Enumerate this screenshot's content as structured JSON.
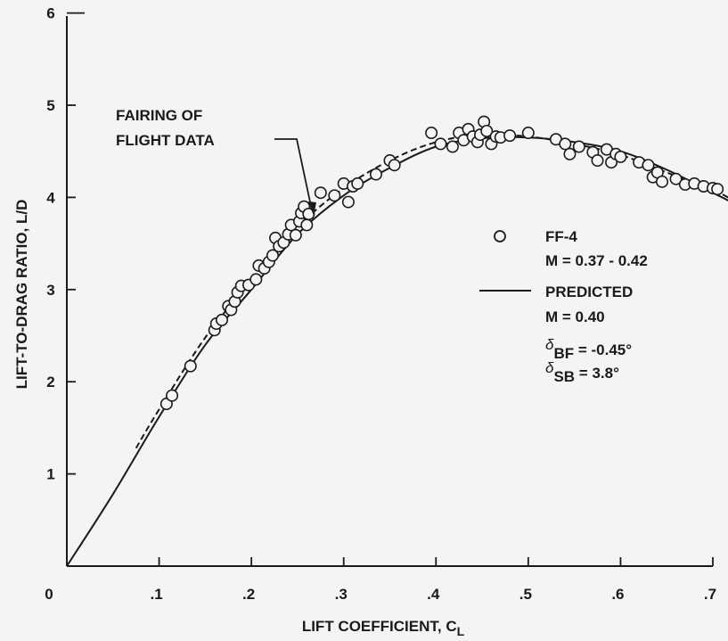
{
  "chart_data": {
    "type": "scatter",
    "xlabel": "LIFT COEFFICIENT, C",
    "xlabel_sub": "L",
    "ylabel": "LIFT-TO-DRAG RATIO, L/D",
    "xlim": [
      0,
      0.7
    ],
    "ylim": [
      0,
      6
    ],
    "xticks": [
      0,
      0.1,
      0.2,
      0.3,
      0.4,
      0.5,
      0.6,
      0.7
    ],
    "xtick_labels": [
      "0",
      ".1",
      ".2",
      ".3",
      ".4",
      ".5",
      ".6",
      ".7"
    ],
    "yticks": [
      1,
      2,
      3,
      4,
      5,
      6
    ],
    "ytick_labels": [
      "1",
      "2",
      "3",
      "4",
      "5",
      "6"
    ],
    "grid": false,
    "legend_position": "center-right",
    "annotation": {
      "line1": "FAIRING OF",
      "line2": "FLIGHT DATA",
      "points_to": [
        0.265,
        3.85
      ]
    },
    "legend": {
      "flight_label": "FF-4",
      "flight_mach": "M = 0.37 - 0.42",
      "predicted_label": "PREDICTED",
      "predicted_mach": "M = 0.40",
      "delta_bf": {
        "symbol": "δ",
        "sub": "BF",
        "value": " = -0.45°"
      },
      "delta_sb": {
        "symbol": "δ",
        "sub": "SB",
        "value": " = 3.8°"
      }
    },
    "series": [
      {
        "name": "FF-4",
        "style": "open-circle",
        "points": [
          [
            0.108,
            1.76
          ],
          [
            0.114,
            1.85
          ],
          [
            0.134,
            2.17
          ],
          [
            0.16,
            2.56
          ],
          [
            0.162,
            2.63
          ],
          [
            0.168,
            2.67
          ],
          [
            0.175,
            2.82
          ],
          [
            0.178,
            2.78
          ],
          [
            0.182,
            2.87
          ],
          [
            0.185,
            2.97
          ],
          [
            0.189,
            3.04
          ],
          [
            0.197,
            3.05
          ],
          [
            0.205,
            3.11
          ],
          [
            0.208,
            3.26
          ],
          [
            0.214,
            3.23
          ],
          [
            0.219,
            3.3
          ],
          [
            0.223,
            3.37
          ],
          [
            0.226,
            3.56
          ],
          [
            0.23,
            3.47
          ],
          [
            0.235,
            3.51
          ],
          [
            0.24,
            3.6
          ],
          [
            0.243,
            3.7
          ],
          [
            0.248,
            3.59
          ],
          [
            0.252,
            3.74
          ],
          [
            0.254,
            3.83
          ],
          [
            0.257,
            3.9
          ],
          [
            0.26,
            3.7
          ],
          [
            0.262,
            3.82
          ],
          [
            0.275,
            4.05
          ],
          [
            0.29,
            4.02
          ],
          [
            0.3,
            4.15
          ],
          [
            0.305,
            3.95
          ],
          [
            0.31,
            4.12
          ],
          [
            0.315,
            4.15
          ],
          [
            0.335,
            4.25
          ],
          [
            0.35,
            4.4
          ],
          [
            0.355,
            4.35
          ],
          [
            0.395,
            4.7
          ],
          [
            0.405,
            4.58
          ],
          [
            0.418,
            4.55
          ],
          [
            0.425,
            4.7
          ],
          [
            0.43,
            4.62
          ],
          [
            0.435,
            4.74
          ],
          [
            0.44,
            4.66
          ],
          [
            0.445,
            4.6
          ],
          [
            0.448,
            4.68
          ],
          [
            0.452,
            4.82
          ],
          [
            0.455,
            4.72
          ],
          [
            0.46,
            4.58
          ],
          [
            0.465,
            4.66
          ],
          [
            0.47,
            4.65
          ],
          [
            0.48,
            4.67
          ],
          [
            0.5,
            4.7
          ],
          [
            0.53,
            4.63
          ],
          [
            0.54,
            4.58
          ],
          [
            0.545,
            4.47
          ],
          [
            0.555,
            4.55
          ],
          [
            0.57,
            4.49
          ],
          [
            0.575,
            4.4
          ],
          [
            0.585,
            4.52
          ],
          [
            0.59,
            4.38
          ],
          [
            0.595,
            4.47
          ],
          [
            0.6,
            4.44
          ],
          [
            0.62,
            4.38
          ],
          [
            0.63,
            4.35
          ],
          [
            0.635,
            4.22
          ],
          [
            0.64,
            4.27
          ],
          [
            0.645,
            4.17
          ],
          [
            0.66,
            4.2
          ],
          [
            0.67,
            4.14
          ],
          [
            0.68,
            4.15
          ],
          [
            0.69,
            4.12
          ],
          [
            0.7,
            4.1
          ],
          [
            0.705,
            4.09
          ]
        ]
      },
      {
        "name": "PREDICTED",
        "style": "solid",
        "points": [
          [
            0,
            0
          ],
          [
            0.05,
            0.78
          ],
          [
            0.1,
            1.62
          ],
          [
            0.15,
            2.4
          ],
          [
            0.2,
            3.0
          ],
          [
            0.25,
            3.6
          ],
          [
            0.3,
            4.02
          ],
          [
            0.35,
            4.32
          ],
          [
            0.4,
            4.55
          ],
          [
            0.45,
            4.64
          ],
          [
            0.5,
            4.65
          ],
          [
            0.55,
            4.6
          ],
          [
            0.6,
            4.5
          ],
          [
            0.65,
            4.3
          ],
          [
            0.7,
            4.05
          ],
          [
            0.72,
            3.95
          ]
        ]
      },
      {
        "name": "FAIRING OF FLIGHT DATA",
        "style": "dashed",
        "points": [
          [
            0.075,
            1.28
          ],
          [
            0.1,
            1.7
          ],
          [
            0.15,
            2.48
          ],
          [
            0.2,
            3.1
          ],
          [
            0.25,
            3.68
          ],
          [
            0.3,
            4.1
          ],
          [
            0.35,
            4.4
          ],
          [
            0.4,
            4.6
          ],
          [
            0.45,
            4.68
          ],
          [
            0.5,
            4.66
          ],
          [
            0.55,
            4.58
          ],
          [
            0.6,
            4.46
          ],
          [
            0.65,
            4.27
          ],
          [
            0.7,
            4.08
          ],
          [
            0.72,
            3.98
          ]
        ]
      }
    ]
  }
}
